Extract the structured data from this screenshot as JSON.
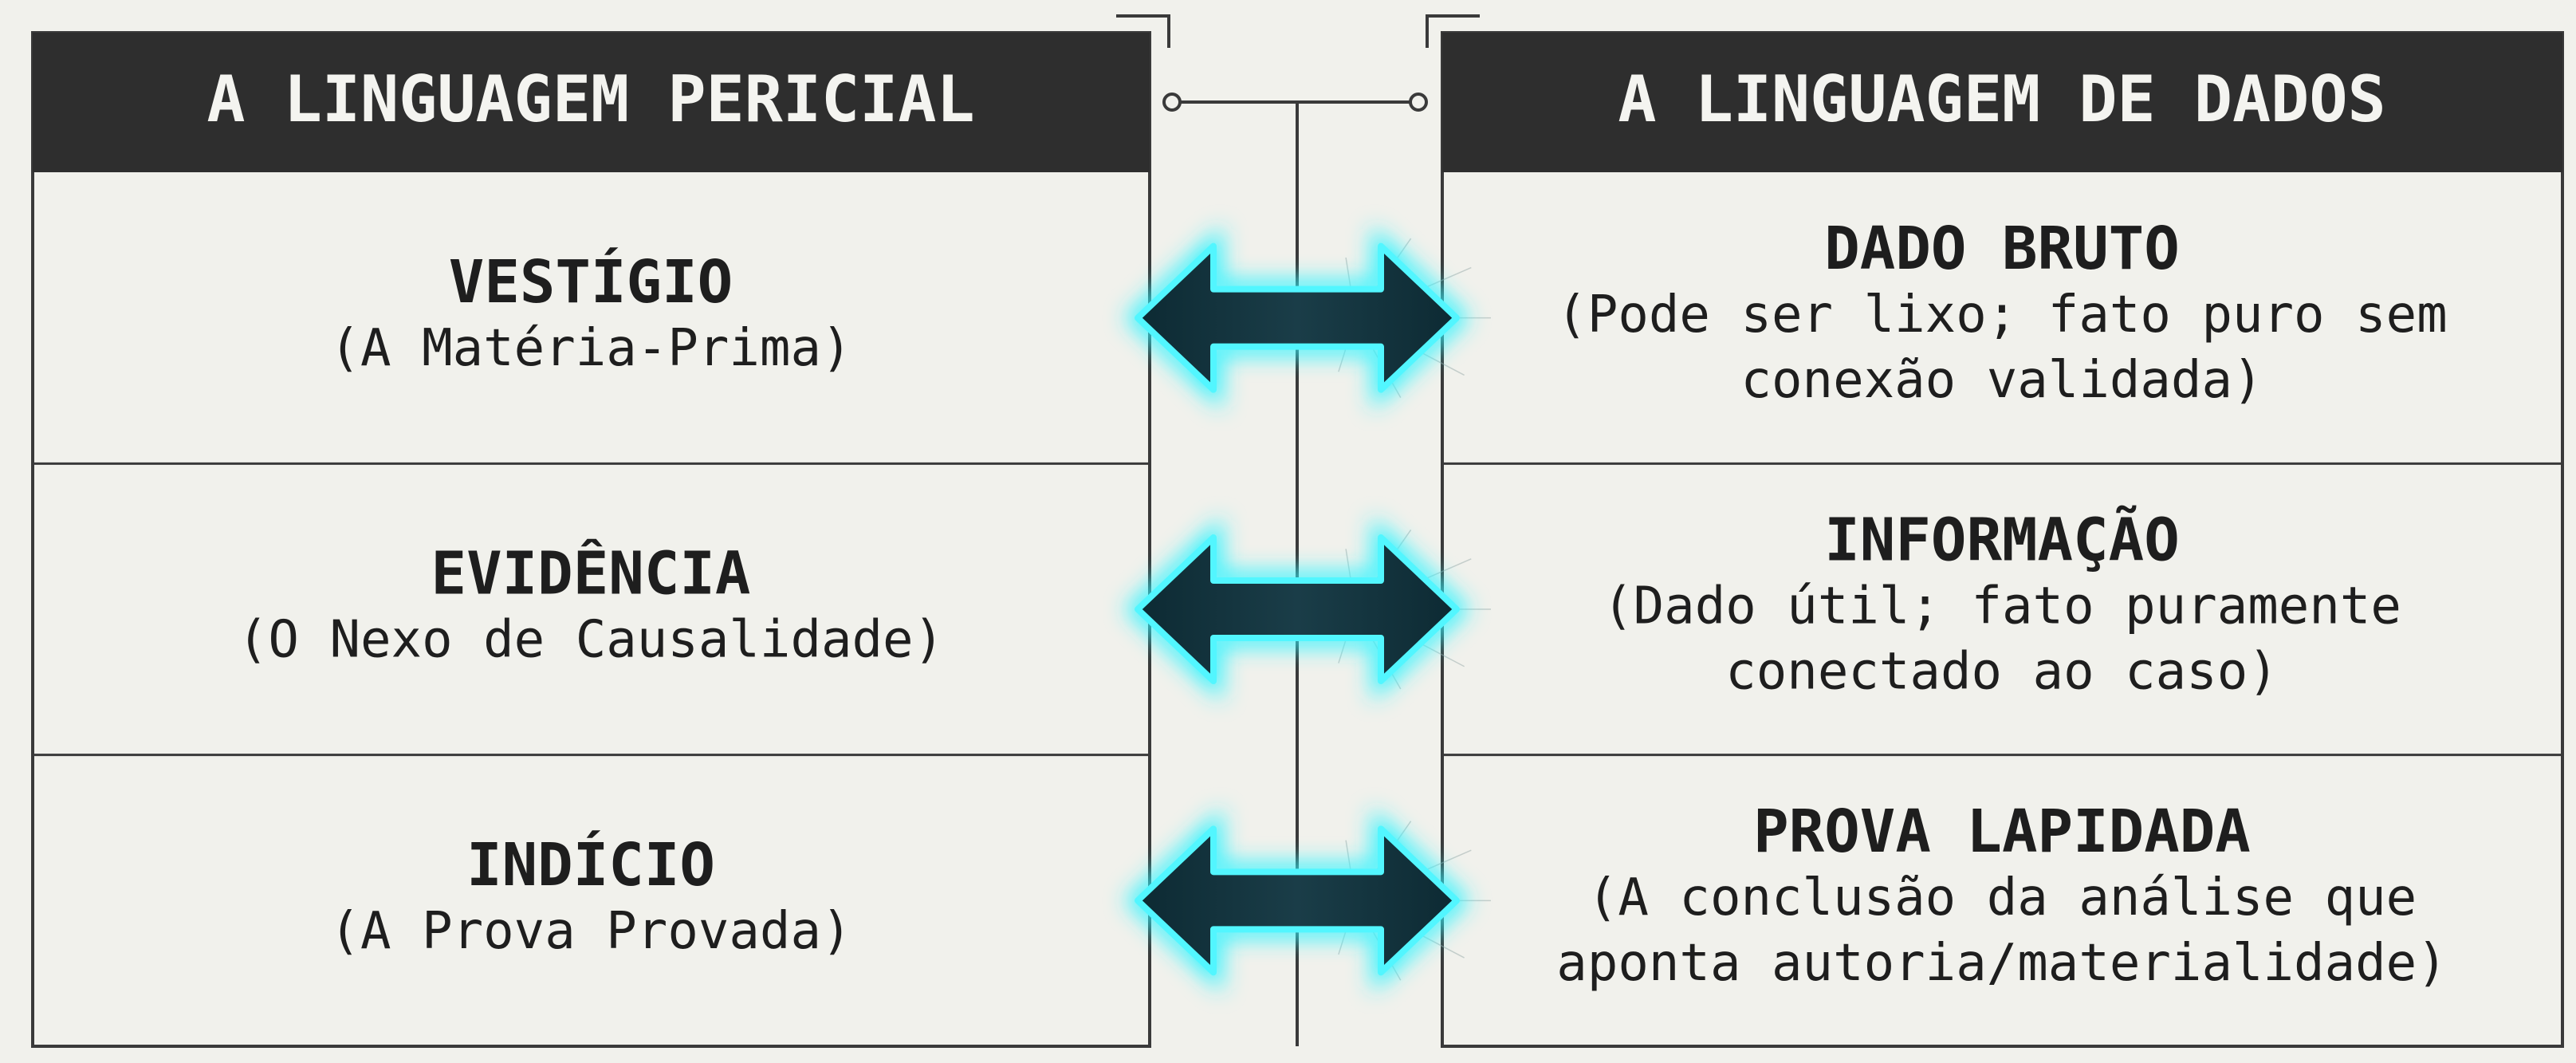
{
  "left_title": "A LINGUAGEM PERICIAL",
  "right_title": "A LINGUAGEM DE DADOS",
  "rows": [
    {
      "left": {
        "term": "VESTÍGIO",
        "subtitle": "(A Matéria-Prima)"
      },
      "right": {
        "term": "DADO BRUTO",
        "description": [
          "(Pode ser lixo; fato puro sem",
          "conexão validada)"
        ]
      }
    },
    {
      "left": {
        "term": "EVIDÊNCIA",
        "subtitle": "(O Nexo de Causalidade)"
      },
      "right": {
        "term": "INFORMAÇÃO",
        "description": [
          "(Dado útil; fato puramente",
          "conectado ao caso)"
        ]
      }
    },
    {
      "left": {
        "term": "INDÍCIO",
        "subtitle": "(A Prova Provada)"
      },
      "right": {
        "term": "PROVA LAPIDADA",
        "description": [
          "(A conclusão da análise que",
          "aponta autoria/materialidade)"
        ]
      }
    }
  ]
}
